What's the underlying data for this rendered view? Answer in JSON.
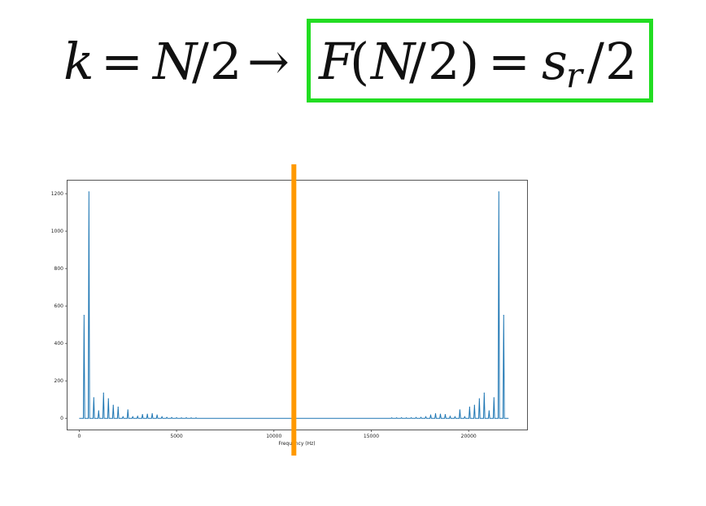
{
  "formula": {
    "left": {
      "k": "k",
      "eq": "=",
      "N": "N",
      "slash": "/",
      "two": "2",
      "arrow": "→"
    },
    "right": {
      "F": "F",
      "lparen": "(",
      "N": "N",
      "slash": "/",
      "two": "2",
      "rparen": ")",
      "eq": "=",
      "s": "s",
      "r": "r",
      "slash2": "/",
      "two2": "2"
    },
    "highlight_color": "#22dd22"
  },
  "chart_data": {
    "type": "line",
    "title": "",
    "xlabel": "Frequency (Hz)",
    "ylabel": "",
    "xlim": [
      -600,
      23000
    ],
    "ylim": [
      -60,
      1270
    ],
    "xticks": [
      0,
      5000,
      10000,
      15000,
      20000
    ],
    "xtick_labels": [
      "0",
      "5000",
      "10000",
      "15000",
      "20000"
    ],
    "yticks": [
      0,
      200,
      400,
      600,
      800,
      1000,
      1200
    ],
    "ytick_labels": [
      "0",
      "200",
      "400",
      "600",
      "800",
      "1000",
      "1200"
    ],
    "grid": false,
    "line_color": "#1f77b4",
    "series": [
      {
        "x_max": 22050,
        "peaks": [
          {
            "x": 250,
            "y": 550
          },
          {
            "x": 500,
            "y": 1210
          },
          {
            "x": 750,
            "y": 110
          },
          {
            "x": 1000,
            "y": 40
          },
          {
            "x": 1250,
            "y": 135
          },
          {
            "x": 1500,
            "y": 105
          },
          {
            "x": 1750,
            "y": 70
          },
          {
            "x": 2000,
            "y": 60
          },
          {
            "x": 2250,
            "y": 8
          },
          {
            "x": 2500,
            "y": 45
          },
          {
            "x": 2750,
            "y": 8
          },
          {
            "x": 3000,
            "y": 10
          },
          {
            "x": 3250,
            "y": 20
          },
          {
            "x": 3500,
            "y": 22
          },
          {
            "x": 3750,
            "y": 25
          },
          {
            "x": 4000,
            "y": 18
          },
          {
            "x": 4250,
            "y": 8
          },
          {
            "x": 4500,
            "y": 5
          },
          {
            "x": 4750,
            "y": 4
          },
          {
            "x": 5000,
            "y": 3
          },
          {
            "x": 5250,
            "y": 2
          },
          {
            "x": 5500,
            "y": 3
          },
          {
            "x": 5750,
            "y": 2
          },
          {
            "x": 6000,
            "y": 2
          }
        ]
      }
    ],
    "nyquist_marker": {
      "x": 11025,
      "color": "#ff9900"
    }
  }
}
